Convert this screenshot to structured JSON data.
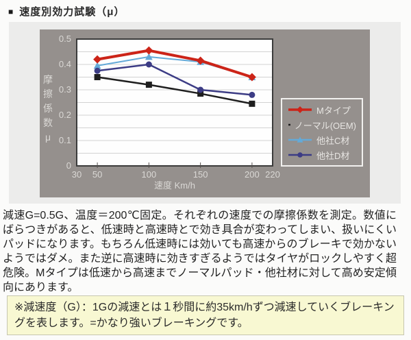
{
  "page": {
    "bullet": "■",
    "title": "速度別効力試験（μ）"
  },
  "description": "減速G=0.5G、温度＝200℃固定。それぞれの速度での摩擦係数を測定。数値にばらつきがあると、低速時と高速時とで効き具合が変わってしまい、扱いにくいパッドになります。もちろん低速時には効いても高速からのブレーキで効かないようではダメ。また逆に高速時に効きすぎるようではタイヤがロックしやすく超危険。Mタイプは低速から高速までノーマルパッド・他社材に対して高め安定傾向にあります。",
  "note": "※減速度（G）：1Gの減速とは１秒間に約35km/hずつ減速していくブレーキングを表します。=かなり強いブレーキングです。",
  "chart_data": {
    "type": "line",
    "xlabel": "速度 Km/h",
    "ylabel": "摩擦係数μ",
    "xlim": [
      30,
      220
    ],
    "ylim": [
      0,
      0.5
    ],
    "x_ticks": [
      30,
      50,
      100,
      150,
      200,
      220
    ],
    "y_ticks": [
      0,
      0.1,
      0.2,
      0.3,
      0.4,
      0.5
    ],
    "grid_step": 0.05,
    "grid": true,
    "legend_position": "right-inside",
    "x": [
      50,
      100,
      150,
      200
    ],
    "series": [
      {
        "name": "Mタイプ",
        "color": "#cc2418",
        "marker": "diamond",
        "linewidth": 4,
        "values": [
          0.42,
          0.455,
          0.415,
          0.35
        ]
      },
      {
        "name": "ノーマル(OEM)",
        "color": "#1e1e1e",
        "marker": "square",
        "linewidth": 2.5,
        "values": [
          0.35,
          0.32,
          0.285,
          0.245
        ]
      },
      {
        "name": "他社C材",
        "color": "#64aad8",
        "marker": "triangle",
        "linewidth": 2,
        "values": [
          0.395,
          0.43,
          0.41,
          0.35
        ]
      },
      {
        "name": "他社D材",
        "color": "#3c3c85",
        "marker": "circle",
        "linewidth": 2.5,
        "values": [
          0.375,
          0.4,
          0.3,
          0.28
        ]
      }
    ],
    "draw_order": [
      2,
      1,
      3,
      0
    ],
    "colors": {
      "panel_bg": "#95908d",
      "plot_bg": "#fefefe",
      "grid": "#d2d2d2",
      "plot_border": "#3b3b3b",
      "tick": "#55504e",
      "tick_text": "#dad8d5",
      "legend_text": "#e7e5e2",
      "legend_border": "#f2f1ef",
      "container_bg": "#ececeb",
      "note_bg": "#f8f8d2",
      "note_border": "#c6c6b0"
    }
  }
}
